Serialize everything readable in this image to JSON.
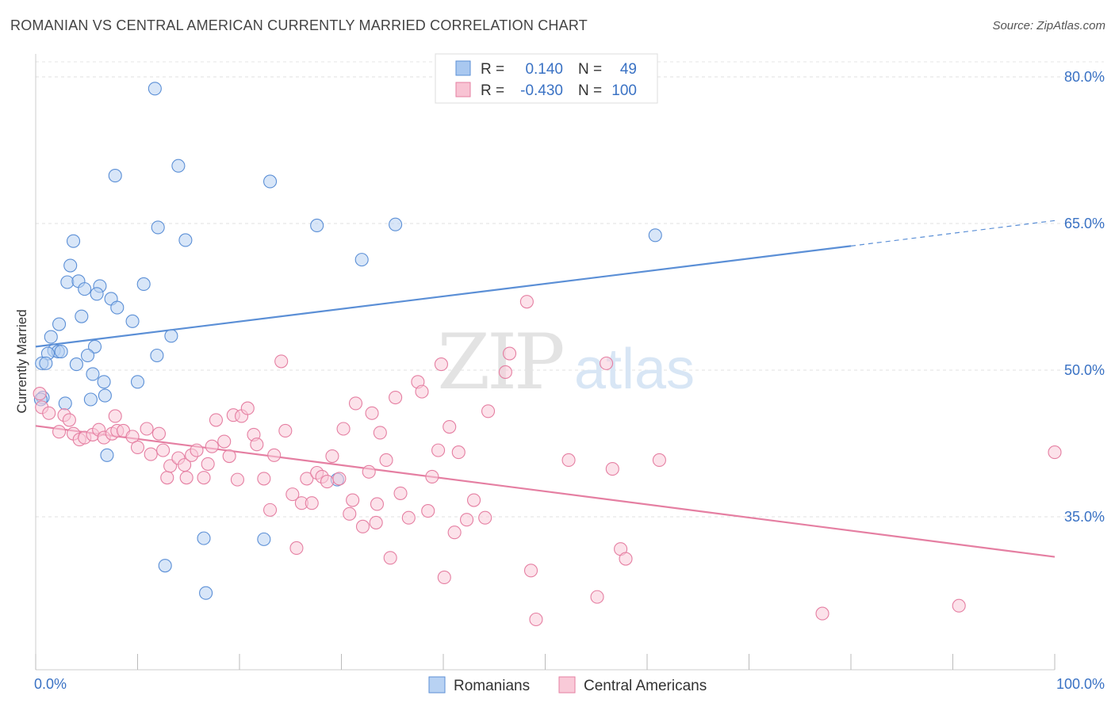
{
  "title": "ROMANIAN VS CENTRAL AMERICAN CURRENTLY MARRIED CORRELATION CHART",
  "source": "Source: ZipAtlas.com",
  "watermark": {
    "zip": "ZIP",
    "atlas": "atlas"
  },
  "legend_top": [
    {
      "r_label": "R =",
      "r_value": "0.140",
      "n_label": "N =",
      "n_value": "49",
      "color": "#a9c8f0",
      "stroke": "#5b8fd6",
      "text_color": "#3a72c4"
    },
    {
      "r_label": "R =",
      "r_value": "-0.430",
      "n_label": "N =",
      "n_value": "100",
      "color": "#f8c3d3",
      "stroke": "#e57fa2",
      "text_color": "#3a72c4"
    }
  ],
  "legend_bottom": [
    {
      "label": "Romanians",
      "color": "#b8d2f3",
      "stroke": "#5b8fd6"
    },
    {
      "label": "Central Americans",
      "color": "#f9cad8",
      "stroke": "#e57fa2"
    }
  ],
  "chart_data": {
    "type": "scatter",
    "title": "ROMANIAN VS CENTRAL AMERICAN CURRENTLY MARRIED CORRELATION CHART",
    "xlabel": "",
    "ylabel": "Currently Married",
    "xlim": [
      0,
      100
    ],
    "ylim": [
      20,
      85
    ],
    "x_tick_labels": [
      "0.0%",
      "100.0%"
    ],
    "y_ticks": [
      35,
      50,
      65,
      80
    ],
    "y_tick_labels": [
      "35.0%",
      "50.0%",
      "65.0%",
      "80.0%"
    ],
    "grid": true,
    "series": [
      {
        "name": "Romanians",
        "color": "#5b8fd6",
        "fill": "#b8d2f3",
        "trend": {
          "x0": 0,
          "y0": 52.4,
          "x1": 80,
          "y1": 62.7,
          "dash_to_x": 100,
          "dash_to_y": 65.3
        },
        "points": [
          [
            11.7,
            78.8
          ],
          [
            14.0,
            70.9
          ],
          [
            7.8,
            69.9
          ],
          [
            23.0,
            69.3
          ],
          [
            12.0,
            64.6
          ],
          [
            27.6,
            64.8
          ],
          [
            35.3,
            64.9
          ],
          [
            14.7,
            63.3
          ],
          [
            3.7,
            63.2
          ],
          [
            32.0,
            61.3
          ],
          [
            60.8,
            63.8
          ],
          [
            3.4,
            60.7
          ],
          [
            3.1,
            59.0
          ],
          [
            4.2,
            59.1
          ],
          [
            10.6,
            58.8
          ],
          [
            6.3,
            58.6
          ],
          [
            4.8,
            58.3
          ],
          [
            6.0,
            57.8
          ],
          [
            7.4,
            57.3
          ],
          [
            8.0,
            56.4
          ],
          [
            4.5,
            55.5
          ],
          [
            9.5,
            55.0
          ],
          [
            2.3,
            54.7
          ],
          [
            13.3,
            53.5
          ],
          [
            1.5,
            53.4
          ],
          [
            5.8,
            52.4
          ],
          [
            1.8,
            52.0
          ],
          [
            2.2,
            51.9
          ],
          [
            2.5,
            51.9
          ],
          [
            1.2,
            51.7
          ],
          [
            11.9,
            51.5
          ],
          [
            5.1,
            51.5
          ],
          [
            0.6,
            50.7
          ],
          [
            1.0,
            50.7
          ],
          [
            4.0,
            50.6
          ],
          [
            5.6,
            49.6
          ],
          [
            10.0,
            48.8
          ],
          [
            6.7,
            48.8
          ],
          [
            0.7,
            47.2
          ],
          [
            0.5,
            47.0
          ],
          [
            6.8,
            47.4
          ],
          [
            5.4,
            47.0
          ],
          [
            2.9,
            46.6
          ],
          [
            7.0,
            41.3
          ],
          [
            29.6,
            38.8
          ],
          [
            16.5,
            32.8
          ],
          [
            22.4,
            32.7
          ],
          [
            12.7,
            30.0
          ],
          [
            16.7,
            27.2
          ]
        ]
      },
      {
        "name": "Central Americans",
        "color": "#e57fa2",
        "fill": "#f9cad8",
        "trend": {
          "x0": 0,
          "y0": 44.3,
          "x1": 100,
          "y1": 30.9
        },
        "points": [
          [
            0.4,
            47.6
          ],
          [
            0.6,
            46.2
          ],
          [
            1.3,
            45.6
          ],
          [
            2.8,
            45.4
          ],
          [
            3.3,
            44.9
          ],
          [
            2.3,
            43.7
          ],
          [
            3.7,
            43.5
          ],
          [
            4.3,
            42.9
          ],
          [
            4.8,
            43.1
          ],
          [
            5.6,
            43.4
          ],
          [
            6.2,
            43.9
          ],
          [
            6.7,
            43.1
          ],
          [
            7.5,
            43.5
          ],
          [
            8.0,
            43.8
          ],
          [
            8.6,
            43.8
          ],
          [
            7.8,
            45.3
          ],
          [
            9.5,
            43.2
          ],
          [
            10.0,
            42.1
          ],
          [
            10.9,
            44.0
          ],
          [
            11.3,
            41.4
          ],
          [
            12.1,
            43.5
          ],
          [
            12.5,
            41.8
          ],
          [
            12.9,
            39.0
          ],
          [
            13.2,
            40.2
          ],
          [
            14.0,
            41.0
          ],
          [
            14.6,
            40.3
          ],
          [
            14.8,
            39.0
          ],
          [
            15.3,
            41.3
          ],
          [
            15.8,
            41.8
          ],
          [
            16.5,
            39.0
          ],
          [
            16.9,
            40.4
          ],
          [
            17.3,
            42.2
          ],
          [
            17.7,
            44.9
          ],
          [
            18.5,
            42.7
          ],
          [
            19.0,
            41.2
          ],
          [
            19.4,
            45.4
          ],
          [
            19.8,
            38.8
          ],
          [
            20.2,
            45.3
          ],
          [
            20.8,
            46.1
          ],
          [
            21.4,
            43.4
          ],
          [
            21.7,
            42.4
          ],
          [
            22.4,
            38.9
          ],
          [
            23.0,
            35.7
          ],
          [
            23.4,
            41.3
          ],
          [
            24.1,
            50.9
          ],
          [
            24.5,
            43.8
          ],
          [
            25.2,
            37.3
          ],
          [
            25.6,
            31.8
          ],
          [
            26.1,
            36.4
          ],
          [
            26.6,
            38.9
          ],
          [
            27.1,
            36.4
          ],
          [
            27.6,
            39.5
          ],
          [
            28.1,
            39.1
          ],
          [
            28.6,
            38.6
          ],
          [
            29.1,
            41.2
          ],
          [
            29.8,
            38.9
          ],
          [
            30.2,
            44.0
          ],
          [
            30.8,
            35.3
          ],
          [
            31.1,
            36.7
          ],
          [
            31.4,
            46.6
          ],
          [
            32.1,
            34.0
          ],
          [
            32.7,
            39.6
          ],
          [
            33.0,
            45.6
          ],
          [
            33.4,
            34.4
          ],
          [
            33.8,
            43.6
          ],
          [
            34.4,
            40.8
          ],
          [
            34.8,
            30.8
          ],
          [
            35.3,
            47.2
          ],
          [
            35.8,
            37.4
          ],
          [
            36.6,
            34.9
          ],
          [
            37.5,
            48.8
          ],
          [
            37.9,
            47.8
          ],
          [
            38.5,
            35.6
          ],
          [
            38.9,
            39.1
          ],
          [
            39.5,
            41.8
          ],
          [
            39.8,
            50.6
          ],
          [
            40.1,
            28.8
          ],
          [
            40.6,
            44.2
          ],
          [
            41.1,
            33.4
          ],
          [
            41.5,
            41.6
          ],
          [
            42.3,
            34.7
          ],
          [
            43.0,
            36.7
          ],
          [
            44.1,
            34.9
          ],
          [
            46.1,
            49.8
          ],
          [
            46.5,
            51.7
          ],
          [
            48.2,
            57.0
          ],
          [
            48.6,
            29.5
          ],
          [
            49.1,
            24.5
          ],
          [
            52.3,
            40.8
          ],
          [
            55.1,
            26.8
          ],
          [
            56.0,
            50.7
          ],
          [
            56.6,
            39.9
          ],
          [
            57.4,
            31.7
          ],
          [
            57.9,
            30.7
          ],
          [
            61.2,
            40.8
          ],
          [
            77.2,
            25.1
          ],
          [
            90.6,
            25.9
          ],
          [
            100.0,
            41.6
          ],
          [
            33.5,
            36.3
          ],
          [
            44.4,
            45.8
          ]
        ]
      }
    ]
  }
}
